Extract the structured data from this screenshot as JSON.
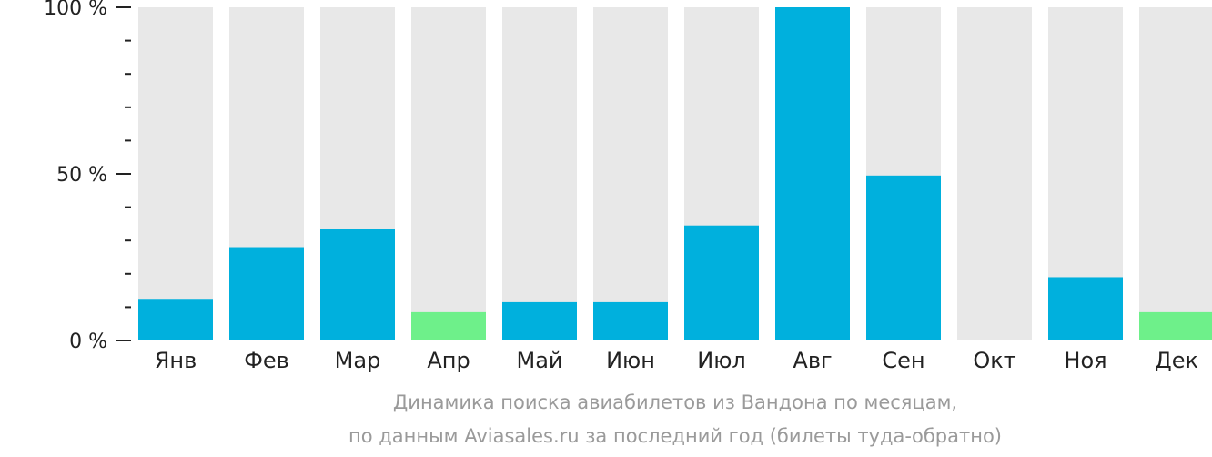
{
  "chart_data": {
    "type": "bar",
    "categories": [
      "Янв",
      "Фев",
      "Мар",
      "Апр",
      "Май",
      "Июн",
      "Июл",
      "Авг",
      "Сен",
      "Окт",
      "Ноя",
      "Дек"
    ],
    "values": [
      12.5,
      28.0,
      33.5,
      8.5,
      11.5,
      11.5,
      34.5,
      100,
      49.5,
      0,
      19.0,
      8.5
    ],
    "highlight": [
      false,
      false,
      false,
      true,
      false,
      false,
      false,
      false,
      false,
      false,
      false,
      true
    ],
    "ylim": [
      0,
      100
    ],
    "yticks": [
      {
        "value": 0,
        "label": "0 %"
      },
      {
        "value": 50,
        "label": "50 %"
      },
      {
        "value": 100,
        "label": "100 %"
      }
    ],
    "minor_ticks": [
      10,
      20,
      30,
      40,
      60,
      70,
      80,
      90
    ],
    "colors": {
      "bar": "#00b0dd",
      "highlight": "#6ef08a",
      "background_bar": "#e8e8e8",
      "axis": "#222222"
    }
  },
  "caption": {
    "line1": "Динамика поиска авиабилетов из Вандона по месяцам,",
    "line2": "по данным Aviasales.ru за последний год (билеты туда-обратно)"
  }
}
